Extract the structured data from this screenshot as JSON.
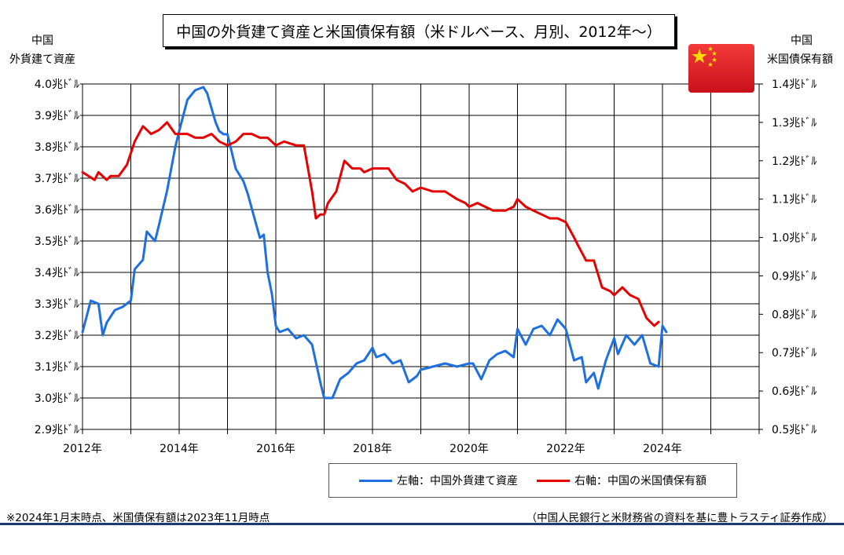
{
  "title": "中国の外貨建て資産と米国債保有額（米ドルベース、月別、2012年～）",
  "left_axis_title": [
    "中国",
    "外貨建て資産"
  ],
  "right_axis_title": [
    "中国",
    "米国債保有額"
  ],
  "legend": {
    "left": "左軸：中国外貨建て資産",
    "right": "右軸：中国の米国債保有額"
  },
  "footnote_left": "※2024年1月末時点、米国債保有額は2023年11月時点",
  "footnote_right": "（中国人民銀行と米財務省の資料を基に豊トラスティ証券作成）",
  "colors": {
    "left_series": "#1e6fe0",
    "right_series": "#e60000",
    "flag_red": "#e8202a",
    "flag_star": "#ffdd00",
    "bottom_rule": "#1f3a75"
  },
  "chart_data": {
    "type": "line",
    "x_range": [
      2012.0,
      2026.0
    ],
    "x_ticks": [
      "2012年",
      "2014年",
      "2016年",
      "2018年",
      "2020年",
      "2022年",
      "2024年"
    ],
    "y_left_ticks": [
      "2.9兆ﾄﾞﾙ",
      "3.0兆ﾄﾞﾙ",
      "3.1兆ﾄﾞﾙ",
      "3.2兆ﾄﾞﾙ",
      "3.3兆ﾄﾞﾙ",
      "3.4兆ﾄﾞﾙ",
      "3.5兆ﾄﾞﾙ",
      "3.6兆ﾄﾞﾙ",
      "3.7兆ﾄﾞﾙ",
      "3.8兆ﾄﾞﾙ",
      "3.9兆ﾄﾞﾙ",
      "4.0兆ﾄﾞﾙ"
    ],
    "y_right_ticks": [
      "0.5兆ﾄﾞﾙ",
      "0.6兆ﾄﾞﾙ",
      "0.7兆ﾄﾞﾙ",
      "0.8兆ﾄﾞﾙ",
      "0.9兆ﾄﾞﾙ",
      "1.0兆ﾄﾞﾙ",
      "1.1兆ﾄﾞﾙ",
      "1.2兆ﾄﾞﾙ",
      "1.3兆ﾄﾞﾙ",
      "1.4兆ﾄﾞﾙ"
    ],
    "y_left_range": [
      2.9,
      4.0
    ],
    "y_right_range": [
      0.5,
      1.4
    ],
    "grid": true,
    "series": [
      {
        "name": "左軸：中国外貨建て資産",
        "axis": "left",
        "x": [
          2012.0,
          2012.17,
          2012.33,
          2012.42,
          2012.5,
          2012.67,
          2012.83,
          2013.0,
          2013.08,
          2013.25,
          2013.33,
          2013.5,
          2013.58,
          2013.75,
          2013.92,
          2014.0,
          2014.17,
          2014.33,
          2014.5,
          2014.58,
          2014.75,
          2014.83,
          2014.92,
          2015.0,
          2015.17,
          2015.33,
          2015.42,
          2015.58,
          2015.67,
          2015.75,
          2015.83,
          2015.92,
          2016.0,
          2016.08,
          2016.25,
          2016.42,
          2016.58,
          2016.75,
          2016.92,
          2017.0,
          2017.17,
          2017.33,
          2017.5,
          2017.67,
          2017.83,
          2018.0,
          2018.08,
          2018.25,
          2018.42,
          2018.58,
          2018.75,
          2018.92,
          2019.0,
          2019.25,
          2019.5,
          2019.75,
          2020.0,
          2020.08,
          2020.25,
          2020.42,
          2020.58,
          2020.75,
          2020.92,
          2021.0,
          2021.17,
          2021.33,
          2021.5,
          2021.67,
          2021.83,
          2022.0,
          2022.17,
          2022.33,
          2022.42,
          2022.58,
          2022.67,
          2022.83,
          2023.0,
          2023.08,
          2023.25,
          2023.42,
          2023.58,
          2023.75,
          2023.92,
          2024.0,
          2024.08
        ],
        "y": [
          3.21,
          3.31,
          3.3,
          3.2,
          3.24,
          3.28,
          3.29,
          3.31,
          3.41,
          3.44,
          3.53,
          3.5,
          3.55,
          3.66,
          3.8,
          3.85,
          3.95,
          3.98,
          3.99,
          3.97,
          3.88,
          3.85,
          3.84,
          3.84,
          3.73,
          3.69,
          3.65,
          3.56,
          3.51,
          3.52,
          3.4,
          3.33,
          3.23,
          3.21,
          3.22,
          3.19,
          3.2,
          3.17,
          3.05,
          3.0,
          3.0,
          3.06,
          3.08,
          3.11,
          3.12,
          3.16,
          3.13,
          3.14,
          3.11,
          3.12,
          3.05,
          3.07,
          3.09,
          3.1,
          3.11,
          3.1,
          3.11,
          3.11,
          3.06,
          3.12,
          3.14,
          3.15,
          3.13,
          3.22,
          3.17,
          3.22,
          3.23,
          3.2,
          3.25,
          3.22,
          3.12,
          3.13,
          3.05,
          3.08,
          3.03,
          3.12,
          3.19,
          3.14,
          3.2,
          3.17,
          3.2,
          3.11,
          3.1,
          3.23,
          3.21
        ]
      },
      {
        "name": "右軸：中国の米国債保有額",
        "axis": "right",
        "x": [
          2012.0,
          2012.25,
          2012.33,
          2012.5,
          2012.58,
          2012.75,
          2012.92,
          2013.0,
          2013.08,
          2013.25,
          2013.42,
          2013.58,
          2013.75,
          2013.92,
          2014.0,
          2014.17,
          2014.33,
          2014.5,
          2014.67,
          2014.83,
          2015.0,
          2015.17,
          2015.33,
          2015.5,
          2015.67,
          2015.83,
          2016.0,
          2016.17,
          2016.42,
          2016.58,
          2016.75,
          2016.83,
          2016.92,
          2017.0,
          2017.08,
          2017.25,
          2017.42,
          2017.58,
          2017.75,
          2017.83,
          2018.0,
          2018.17,
          2018.33,
          2018.5,
          2018.67,
          2018.83,
          2019.0,
          2019.25,
          2019.5,
          2019.75,
          2019.92,
          2020.0,
          2020.17,
          2020.33,
          2020.5,
          2020.75,
          2020.92,
          2021.0,
          2021.17,
          2021.33,
          2021.5,
          2021.67,
          2021.83,
          2022.0,
          2022.17,
          2022.25,
          2022.42,
          2022.58,
          2022.75,
          2022.92,
          2023.0,
          2023.17,
          2023.33,
          2023.5,
          2023.67,
          2023.83,
          2023.92
        ],
        "y": [
          1.17,
          1.15,
          1.17,
          1.15,
          1.16,
          1.16,
          1.19,
          1.22,
          1.25,
          1.29,
          1.27,
          1.28,
          1.3,
          1.27,
          1.27,
          1.27,
          1.26,
          1.26,
          1.27,
          1.25,
          1.24,
          1.25,
          1.27,
          1.27,
          1.26,
          1.26,
          1.24,
          1.25,
          1.24,
          1.24,
          1.12,
          1.05,
          1.06,
          1.06,
          1.09,
          1.12,
          1.2,
          1.18,
          1.18,
          1.17,
          1.18,
          1.18,
          1.18,
          1.15,
          1.14,
          1.12,
          1.13,
          1.12,
          1.12,
          1.1,
          1.09,
          1.08,
          1.09,
          1.08,
          1.07,
          1.07,
          1.08,
          1.1,
          1.08,
          1.07,
          1.06,
          1.05,
          1.05,
          1.04,
          1.0,
          0.98,
          0.94,
          0.94,
          0.87,
          0.86,
          0.85,
          0.87,
          0.85,
          0.84,
          0.79,
          0.77,
          0.78
        ]
      }
    ]
  }
}
